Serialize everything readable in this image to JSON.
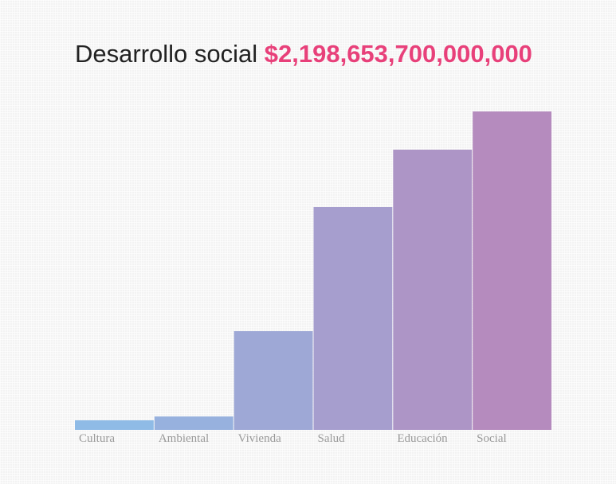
{
  "title": {
    "label": "Desarrollo social",
    "amount": "$2,198,653,700,000,000"
  },
  "colors": {
    "title_text": "#222222",
    "amount": "#e8407a",
    "axis_label": "#999999",
    "bar_start": "#8fbbe6",
    "bar_end": "#b58bbe"
  },
  "chart_data": {
    "type": "bar",
    "categories": [
      "Cultura",
      "Ambiental",
      "Vivienda",
      "Salud",
      "Educación",
      "Social"
    ],
    "values": [
      3,
      4.2,
      31,
      70,
      88,
      100
    ],
    "ylim": [
      0,
      100
    ],
    "grid": false,
    "legend": "none"
  }
}
